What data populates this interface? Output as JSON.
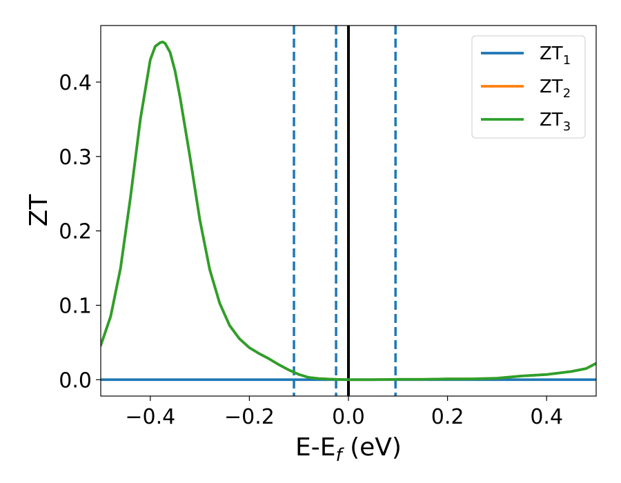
{
  "chart_data": {
    "type": "line",
    "title": "",
    "xlabel": {
      "main": "E-E",
      "sub": "f",
      "unit": " (eV)"
    },
    "ylabel": "ZT",
    "xlim": [
      -0.5,
      0.5
    ],
    "ylim": [
      -0.022,
      0.476
    ],
    "xticks": [
      -0.4,
      -0.2,
      0.0,
      0.2,
      0.4
    ],
    "xtick_labels": [
      "−0.4",
      "−0.2",
      "0.0",
      "0.2",
      "0.4"
    ],
    "yticks": [
      0.0,
      0.1,
      0.2,
      0.3,
      0.4
    ],
    "ytick_labels": [
      "0.0",
      "0.1",
      "0.2",
      "0.3",
      "0.4"
    ],
    "grid": false,
    "legend_position": "top-right",
    "series": [
      {
        "name": "ZT",
        "name_sub": "1",
        "color": "#1f77b4",
        "x": [
          -0.5,
          0.5
        ],
        "y": [
          0.0,
          0.0
        ]
      },
      {
        "name": "ZT",
        "name_sub": "2",
        "color": "#ff7f0e",
        "x": [
          -0.5,
          -0.48,
          -0.46,
          -0.44,
          -0.42,
          -0.4,
          -0.39,
          -0.38,
          -0.375,
          -0.37,
          -0.36,
          -0.35,
          -0.34,
          -0.32,
          -0.3,
          -0.28,
          -0.26,
          -0.24,
          -0.22,
          -0.2,
          -0.18,
          -0.16,
          -0.14,
          -0.12,
          -0.1,
          -0.08,
          -0.06,
          -0.04,
          -0.02,
          0.0,
          0.05,
          0.1,
          0.15,
          0.2,
          0.25,
          0.3,
          0.35,
          0.4,
          0.45,
          0.48,
          0.5
        ],
        "y": [
          0.046,
          0.085,
          0.15,
          0.245,
          0.35,
          0.43,
          0.448,
          0.453,
          0.454,
          0.452,
          0.44,
          0.415,
          0.38,
          0.3,
          0.215,
          0.148,
          0.103,
          0.073,
          0.055,
          0.043,
          0.035,
          0.028,
          0.02,
          0.013,
          0.007,
          0.003,
          0.0015,
          0.0008,
          0.0003,
          0.0,
          0.0,
          0.0005,
          0.0005,
          0.001,
          0.001,
          0.002,
          0.005,
          0.007,
          0.011,
          0.015,
          0.022
        ]
      },
      {
        "name": "ZT",
        "name_sub": "3",
        "color": "#2ca02c",
        "x": [
          -0.5,
          -0.48,
          -0.46,
          -0.44,
          -0.42,
          -0.4,
          -0.39,
          -0.38,
          -0.375,
          -0.37,
          -0.36,
          -0.35,
          -0.34,
          -0.32,
          -0.3,
          -0.28,
          -0.26,
          -0.24,
          -0.22,
          -0.2,
          -0.18,
          -0.16,
          -0.14,
          -0.12,
          -0.1,
          -0.08,
          -0.06,
          -0.04,
          -0.02,
          0.0,
          0.05,
          0.1,
          0.15,
          0.2,
          0.25,
          0.3,
          0.35,
          0.4,
          0.45,
          0.48,
          0.5
        ],
        "y": [
          0.046,
          0.085,
          0.15,
          0.245,
          0.35,
          0.43,
          0.448,
          0.453,
          0.454,
          0.452,
          0.44,
          0.415,
          0.38,
          0.3,
          0.215,
          0.148,
          0.103,
          0.073,
          0.055,
          0.043,
          0.035,
          0.028,
          0.02,
          0.013,
          0.007,
          0.003,
          0.0015,
          0.0008,
          0.0003,
          0.0,
          0.0,
          0.0005,
          0.0005,
          0.001,
          0.001,
          0.002,
          0.005,
          0.007,
          0.011,
          0.015,
          0.022
        ]
      }
    ],
    "vlines": [
      {
        "x": -0.11,
        "style": "dashed",
        "color": "#1f77b4"
      },
      {
        "x": -0.025,
        "style": "dashed",
        "color": "#1f77b4"
      },
      {
        "x": 0.095,
        "style": "dashed",
        "color": "#1f77b4"
      },
      {
        "x": 0.0,
        "style": "solid",
        "color": "#000000"
      }
    ]
  }
}
